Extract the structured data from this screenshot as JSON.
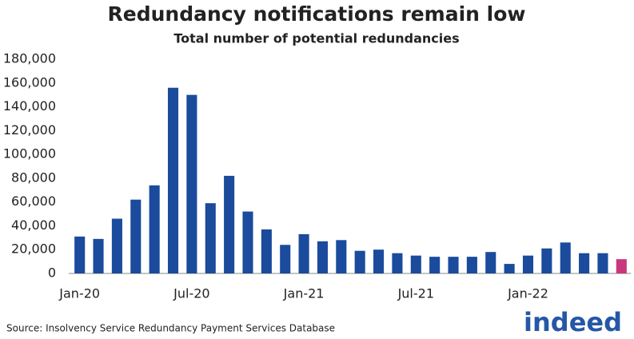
{
  "chart_data": {
    "type": "bar",
    "title": "Redundancy notifications remain low",
    "subtitle": "Total number of potential redundancies",
    "source": "Source: Insolvency Service Redundancy Payment Services Database",
    "logo": "indeed",
    "categories": [
      "Jan-20",
      null,
      null,
      null,
      null,
      null,
      "Jul-20",
      null,
      null,
      null,
      null,
      null,
      "Jan-21",
      null,
      null,
      null,
      null,
      null,
      "Jul-21",
      null,
      null,
      null,
      null,
      null,
      "Jan-22",
      null,
      null,
      null,
      null,
      null
    ],
    "values": [
      31000,
      29000,
      46000,
      62000,
      74000,
      156000,
      150000,
      59000,
      82000,
      52000,
      37000,
      24000,
      33000,
      27000,
      28000,
      19000,
      20000,
      17000,
      15000,
      14000,
      14000,
      14000,
      18000,
      8000,
      15000,
      21000,
      26000,
      17000,
      17000,
      12000
    ],
    "colors": [
      "#1a4b9c",
      "#1a4b9c",
      "#1a4b9c",
      "#1a4b9c",
      "#1a4b9c",
      "#1a4b9c",
      "#1a4b9c",
      "#1a4b9c",
      "#1a4b9c",
      "#1a4b9c",
      "#1a4b9c",
      "#1a4b9c",
      "#1a4b9c",
      "#1a4b9c",
      "#1a4b9c",
      "#1a4b9c",
      "#1a4b9c",
      "#1a4b9c",
      "#1a4b9c",
      "#1a4b9c",
      "#1a4b9c",
      "#1a4b9c",
      "#1a4b9c",
      "#1a4b9c",
      "#1a4b9c",
      "#1a4b9c",
      "#1a4b9c",
      "#1a4b9c",
      "#1a4b9c",
      "#c9377d"
    ],
    "ylim": [
      0,
      180000
    ],
    "yticks": [
      0,
      {
        "value": 20000,
        "label": "20,000"
      },
      {
        "value": 40000,
        "label": "40,000"
      },
      {
        "value": 60000,
        "label": "60,000"
      },
      {
        "value": 80000,
        "label": "80,000"
      },
      {
        "value": 100000,
        "label": "100,000"
      },
      {
        "value": 120000,
        "label": "120,000"
      },
      {
        "value": 140000,
        "label": "140,000"
      },
      {
        "value": 160000,
        "label": "160,000"
      },
      {
        "value": 180000,
        "label": "180,000"
      }
    ],
    "grid": false
  }
}
